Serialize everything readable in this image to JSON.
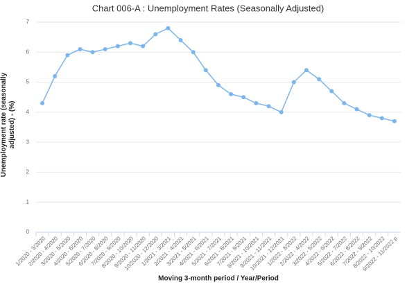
{
  "chart_data": {
    "type": "line",
    "title": "Chart 006-A : Unemployment Rates (Seasonally Adjusted)",
    "x_label": "Moving 3-month period / Year/Period",
    "y_label": "Unemployment rate (seasonally adjusted) - (%)",
    "categories": [
      "1/2020 - 3/2020",
      "2/2020 - 4/2020",
      "3/2020 - 5/2020",
      "4/2020 - 6/2020",
      "5/2020 - 7/2020",
      "6/2020 - 8/2020",
      "7/2020 - 9/2020",
      "8/2020 - 10/2020",
      "9/2020 - 11/2020",
      "10/2020 - 12/2020",
      "1/2021 - 3/2021",
      "2/2021 - 4/2021",
      "3/2021 - 5/2021",
      "4/2021 - 6/2021",
      "5/2021 - 7/2021",
      "6/2021 - 8/2021",
      "7/2021 - 9/2021",
      "8/2021 - 10/2021",
      "9/2021 - 11/2021",
      "10/2021 - 12/2021",
      "1/2022 - 3/2022",
      "2/2022 - 4/2022",
      "3/2022 - 5/2022",
      "4/2022 - 6/2022",
      "5/2022 - 7/2022",
      "6/2022 - 8/2022",
      "7/2022 - 9/2022",
      "8/2022 - 10/2022",
      "9/2022 - 11/2022 p"
    ],
    "values": [
      4.3,
      5.2,
      5.9,
      6.1,
      6.0,
      6.1,
      6.2,
      6.3,
      6.2,
      6.6,
      6.8,
      6.4,
      6.0,
      5.4,
      4.9,
      4.6,
      4.5,
      4.3,
      4.2,
      4.0,
      5.0,
      5.4,
      5.1,
      4.7,
      4.3,
      4.1,
      3.9,
      3.8,
      3.7
    ],
    "color": "#7cb5ec",
    "ylim": [
      0,
      7
    ],
    "yticks": [
      0,
      1,
      2,
      3,
      4,
      5,
      6,
      7
    ],
    "grid": true
  }
}
